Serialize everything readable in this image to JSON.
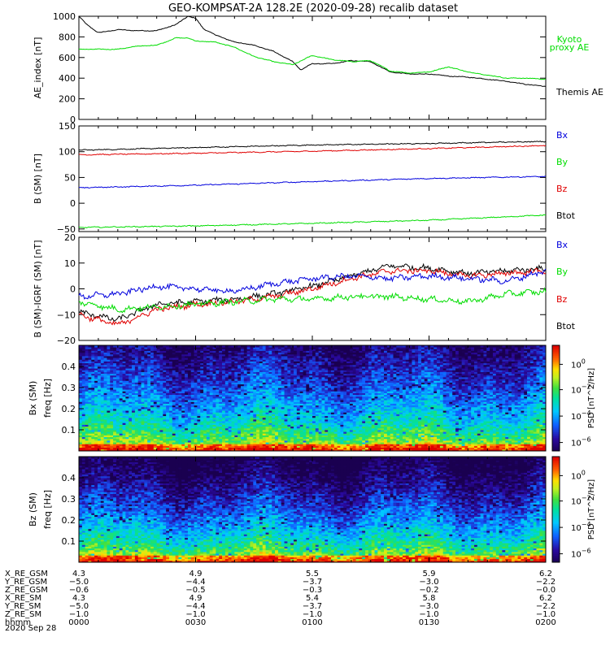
{
  "title": "GEO-KOMPSAT-2A 128.2E (2020-09-28) recalib dataset",
  "colors": {
    "black": "#000000",
    "red": "#e00000",
    "green": "#00dd00",
    "blue": "#0000dd"
  },
  "chart_data": [
    {
      "type": "line",
      "panel": "ae",
      "ylabel": "AE_index [nT]",
      "ylim": [
        0,
        1000
      ],
      "yticks": [
        0,
        200,
        400,
        600,
        800,
        1000
      ],
      "x_range_hhmm": [
        "0000",
        "0200"
      ],
      "legend": [
        {
          "name": "Kyoto proxy AE",
          "color": "#00dd00"
        },
        {
          "name": "Themis AE",
          "color": "#000000"
        }
      ],
      "series": [
        {
          "name": "Themis AE",
          "color": "#000000",
          "x": [
            0,
            2,
            5,
            10,
            15,
            20,
            25,
            28,
            30,
            32,
            35,
            40,
            45,
            50,
            55,
            57,
            60,
            65,
            70,
            75,
            80,
            85,
            90,
            95,
            100,
            105,
            110,
            115,
            120
          ],
          "y": [
            1000,
            920,
            840,
            870,
            860,
            860,
            920,
            1000,
            980,
            880,
            820,
            750,
            720,
            660,
            560,
            480,
            540,
            540,
            570,
            560,
            460,
            440,
            440,
            420,
            410,
            390,
            370,
            340,
            320
          ]
        },
        {
          "name": "Kyoto proxy AE",
          "color": "#00dd00",
          "x": [
            0,
            5,
            10,
            15,
            20,
            25,
            28,
            30,
            35,
            40,
            45,
            50,
            55,
            60,
            65,
            70,
            75,
            80,
            85,
            90,
            95,
            100,
            105,
            110,
            115,
            120
          ],
          "y": [
            680,
            680,
            680,
            710,
            720,
            790,
            790,
            760,
            750,
            700,
            610,
            560,
            530,
            620,
            580,
            560,
            570,
            470,
            450,
            460,
            510,
            460,
            430,
            400,
            400,
            390
          ]
        }
      ]
    },
    {
      "type": "line",
      "panel": "b_sm",
      "ylabel": "B (SM) [nT]",
      "ylim": [
        -55,
        150
      ],
      "yticks": [
        -50,
        0,
        50,
        100,
        150
      ],
      "legend": [
        {
          "name": "Bx",
          "color": "#0000dd"
        },
        {
          "name": "By",
          "color": "#00dd00"
        },
        {
          "name": "Bz",
          "color": "#e00000"
        },
        {
          "name": "Btot",
          "color": "#000000"
        }
      ],
      "series": [
        {
          "name": "Btot",
          "color": "#000000",
          "x": [
            0,
            30,
            60,
            90,
            120
          ],
          "y": [
            103,
            108,
            113,
            116,
            120
          ]
        },
        {
          "name": "Bz",
          "color": "#e00000",
          "x": [
            0,
            30,
            60,
            90,
            120
          ],
          "y": [
            94,
            97,
            101,
            106,
            112
          ]
        },
        {
          "name": "Bx",
          "color": "#0000dd",
          "x": [
            0,
            30,
            60,
            90,
            120
          ],
          "y": [
            30,
            35,
            42,
            48,
            52
          ]
        },
        {
          "name": "By",
          "color": "#00dd00",
          "x": [
            0,
            30,
            60,
            90,
            120
          ],
          "y": [
            -47,
            -44,
            -39,
            -33,
            -23
          ]
        }
      ]
    },
    {
      "type": "line",
      "panel": "db_sm",
      "ylabel": "B (SM)-IGRF (SM) [nT]",
      "ylim": [
        -20,
        20
      ],
      "yticks": [
        -20,
        -10,
        0,
        10,
        20
      ],
      "legend": [
        {
          "name": "Bx",
          "color": "#0000dd"
        },
        {
          "name": "By",
          "color": "#00dd00"
        },
        {
          "name": "Bz",
          "color": "#e00000"
        },
        {
          "name": "Btot",
          "color": "#000000"
        }
      ],
      "series": [
        {
          "name": "Btot",
          "color": "#000000",
          "x": [
            0,
            10,
            20,
            30,
            40,
            50,
            60,
            70,
            80,
            90,
            100,
            110,
            120
          ],
          "y": [
            -9,
            -12,
            -6,
            -5,
            -4,
            -2,
            1,
            5,
            9,
            8,
            6,
            7,
            8
          ]
        },
        {
          "name": "Bz",
          "color": "#e00000",
          "x": [
            0,
            10,
            20,
            30,
            40,
            50,
            60,
            70,
            80,
            90,
            100,
            110,
            120
          ],
          "y": [
            -10,
            -14,
            -8,
            -6,
            -5,
            -3,
            0,
            4,
            7,
            7,
            5,
            6,
            7
          ]
        },
        {
          "name": "Bx",
          "color": "#0000dd",
          "x": [
            0,
            10,
            20,
            30,
            40,
            50,
            60,
            70,
            80,
            90,
            100,
            110,
            120
          ],
          "y": [
            -3,
            -2,
            1,
            0,
            -1,
            2,
            4,
            5,
            4,
            5,
            4,
            3,
            7
          ]
        },
        {
          "name": "By",
          "color": "#00dd00",
          "x": [
            0,
            10,
            20,
            30,
            40,
            50,
            60,
            70,
            80,
            90,
            100,
            110,
            120
          ],
          "y": [
            -5,
            -8,
            -7,
            -6,
            -5,
            -4,
            -4,
            -3,
            -3,
            -4,
            -5,
            -2,
            -1
          ]
        }
      ]
    },
    {
      "type": "heatmap",
      "panel": "bx_psd",
      "ylabel": "Bx (SM) freq [Hz]",
      "ylim": [
        0,
        0.5
      ],
      "yticks": [
        0.1,
        0.2,
        0.3,
        0.4
      ],
      "colorbar": {
        "label": "PSD [nT^2/Hz]",
        "ticks": [
          "10^0",
          "10^-2",
          "10^-4",
          "10^-6"
        ]
      }
    },
    {
      "type": "heatmap",
      "panel": "bz_psd",
      "ylabel": "Bz (SM) freq [Hz]",
      "ylim": [
        0,
        0.5
      ],
      "yticks": [
        0.1,
        0.2,
        0.3,
        0.4
      ],
      "colorbar": {
        "label": "PSD [nT^2/Hz]",
        "ticks": [
          "10^0",
          "10^-2",
          "10^-4",
          "10^-6"
        ]
      }
    }
  ],
  "xaxis_table": {
    "rows": [
      {
        "label": "X_RE_GSM",
        "values": [
          "4.3",
          "4.9",
          "5.5",
          "5.9",
          "6.2"
        ]
      },
      {
        "label": "Y_RE_GSM",
        "values": [
          "−5.0",
          "−4.4",
          "−3.7",
          "−3.0",
          "−2.2"
        ]
      },
      {
        "label": "Z_RE_GSM",
        "values": [
          "−0.6",
          "−0.5",
          "−0.3",
          "−0.2",
          "−0.0"
        ]
      },
      {
        "label": "X_RE_SM",
        "values": [
          "4.3",
          "4.9",
          "5.4",
          "5.8",
          "6.2"
        ]
      },
      {
        "label": "Y_RE_SM",
        "values": [
          "−5.0",
          "−4.4",
          "−3.7",
          "−3.0",
          "−2.2"
        ]
      },
      {
        "label": "Z_RE_SM",
        "values": [
          "−1.0",
          "−1.0",
          "−1.0",
          "−1.0",
          "−1.0"
        ]
      },
      {
        "label": "hhmm",
        "values": [
          "0000",
          "0030",
          "0100",
          "0130",
          "0200"
        ]
      }
    ],
    "date": "2020 Sep 28"
  }
}
